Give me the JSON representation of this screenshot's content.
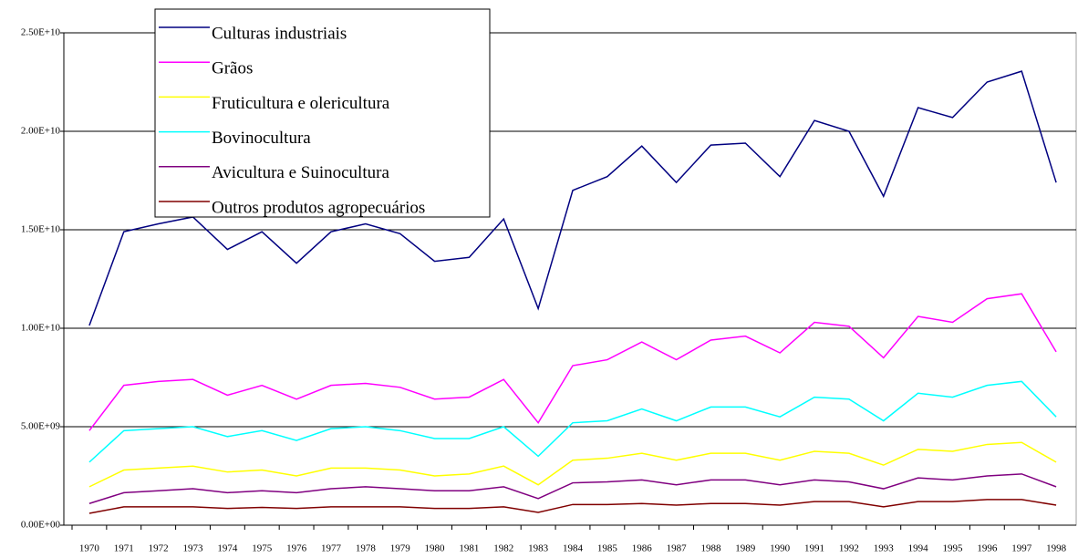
{
  "chart_data": {
    "type": "line",
    "categories": [
      "1970",
      "1971",
      "1972",
      "1973",
      "1974",
      "1975",
      "1976",
      "1977",
      "1978",
      "1979",
      "1980",
      "1981",
      "1982",
      "1983",
      "1984",
      "1985",
      "1986",
      "1987",
      "1988",
      "1989",
      "1990",
      "1991",
      "1992",
      "1993",
      "1994",
      "1995",
      "1996",
      "1997",
      "1998"
    ],
    "series": [
      {
        "name": "Culturas industriais",
        "color": "#000080",
        "values": [
          10140000000.0,
          14900000000.0,
          15300000000.0,
          15650000000.0,
          14000000000.0,
          14900000000.0,
          13300000000.0,
          14900000000.0,
          15300000000.0,
          14800000000.0,
          13400000000.0,
          13600000000.0,
          15550000000.0,
          11000000000.0,
          17000000000.0,
          17700000000.0,
          19250000000.0,
          17400000000.0,
          19300000000.0,
          19400000000.0,
          17700000000.0,
          20550000000.0,
          20000000000.0,
          16700000000.0,
          21200000000.0,
          20700000000.0,
          22500000000.0,
          23050000000.0,
          17400000000.0
        ]
      },
      {
        "name": "Grãos",
        "color": "#ff00ff",
        "values": [
          4800000000.0,
          7100000000.0,
          7300000000.0,
          7400000000.0,
          6600000000.0,
          7100000000.0,
          6400000000.0,
          7100000000.0,
          7200000000.0,
          7000000000.0,
          6400000000.0,
          6500000000.0,
          7400000000.0,
          5200000000.0,
          8100000000.0,
          8400000000.0,
          9300000000.0,
          8400000000.0,
          9400000000.0,
          9600000000.0,
          8750000000.0,
          10300000000.0,
          10100000000.0,
          8500000000.0,
          10600000000.0,
          10300000000.0,
          11500000000.0,
          11750000000.0,
          8800000000.0
        ]
      },
      {
        "name": "Fruticultura e olericultura",
        "color": "#ffff00",
        "values": [
          1950000000.0,
          2800000000.0,
          2900000000.0,
          3000000000.0,
          2700000000.0,
          2800000000.0,
          2500000000.0,
          2900000000.0,
          2900000000.0,
          2800000000.0,
          2500000000.0,
          2600000000.0,
          3000000000.0,
          2050000000.0,
          3300000000.0,
          3400000000.0,
          3650000000.0,
          3300000000.0,
          3650000000.0,
          3650000000.0,
          3300000000.0,
          3750000000.0,
          3650000000.0,
          3050000000.0,
          3850000000.0,
          3750000000.0,
          4100000000.0,
          4200000000.0,
          3200000000.0
        ]
      },
      {
        "name": "Bovinocultura",
        "color": "#00ffff",
        "values": [
          3200000000.0,
          4800000000.0,
          4900000000.0,
          5000000000.0,
          4500000000.0,
          4800000000.0,
          4300000000.0,
          4900000000.0,
          5000000000.0,
          4800000000.0,
          4400000000.0,
          4400000000.0,
          5000000000.0,
          3500000000.0,
          5200000000.0,
          5300000000.0,
          5900000000.0,
          5300000000.0,
          6000000000.0,
          6000000000.0,
          5500000000.0,
          6500000000.0,
          6400000000.0,
          5300000000.0,
          6700000000.0,
          6500000000.0,
          7100000000.0,
          7300000000.0,
          5500000000.0
        ]
      },
      {
        "name": "Avicultura e Suinocultura",
        "color": "#800080",
        "values": [
          1100000000.0,
          1650000000.0,
          1750000000.0,
          1850000000.0,
          1650000000.0,
          1750000000.0,
          1650000000.0,
          1850000000.0,
          1950000000.0,
          1850000000.0,
          1750000000.0,
          1750000000.0,
          1950000000.0,
          1350000000.0,
          2150000000.0,
          2200000000.0,
          2300000000.0,
          2050000000.0,
          2300000000.0,
          2300000000.0,
          2050000000.0,
          2300000000.0,
          2200000000.0,
          1850000000.0,
          2400000000.0,
          2300000000.0,
          2500000000.0,
          2600000000.0,
          1950000000.0
        ]
      },
      {
        "name": "Outros produtos agropecuários",
        "color": "#800000",
        "values": [
          600000000.0,
          930000000.0,
          930000000.0,
          930000000.0,
          850000000.0,
          900000000.0,
          850000000.0,
          930000000.0,
          930000000.0,
          930000000.0,
          850000000.0,
          850000000.0,
          930000000.0,
          650000000.0,
          1050000000.0,
          1050000000.0,
          1100000000.0,
          1020000000.0,
          1100000000.0,
          1100000000.0,
          1020000000.0,
          1200000000.0,
          1200000000.0,
          930000000.0,
          1200000000.0,
          1200000000.0,
          1300000000.0,
          1300000000.0,
          1020000000.0
        ]
      }
    ],
    "ylim": [
      0,
      25000000000.0
    ],
    "yticks": [
      {
        "value": 0,
        "label": "0.00E+00"
      },
      {
        "value": 5000000000.0,
        "label": "5.00E+09"
      },
      {
        "value": 10000000000.0,
        "label": "1.00E+10"
      },
      {
        "value": 15000000000.0,
        "label": "1.50E+10"
      },
      {
        "value": 20000000000.0,
        "label": "2.00E+10"
      },
      {
        "value": 25000000000.0,
        "label": "2.50E+10"
      }
    ],
    "grid": true
  }
}
